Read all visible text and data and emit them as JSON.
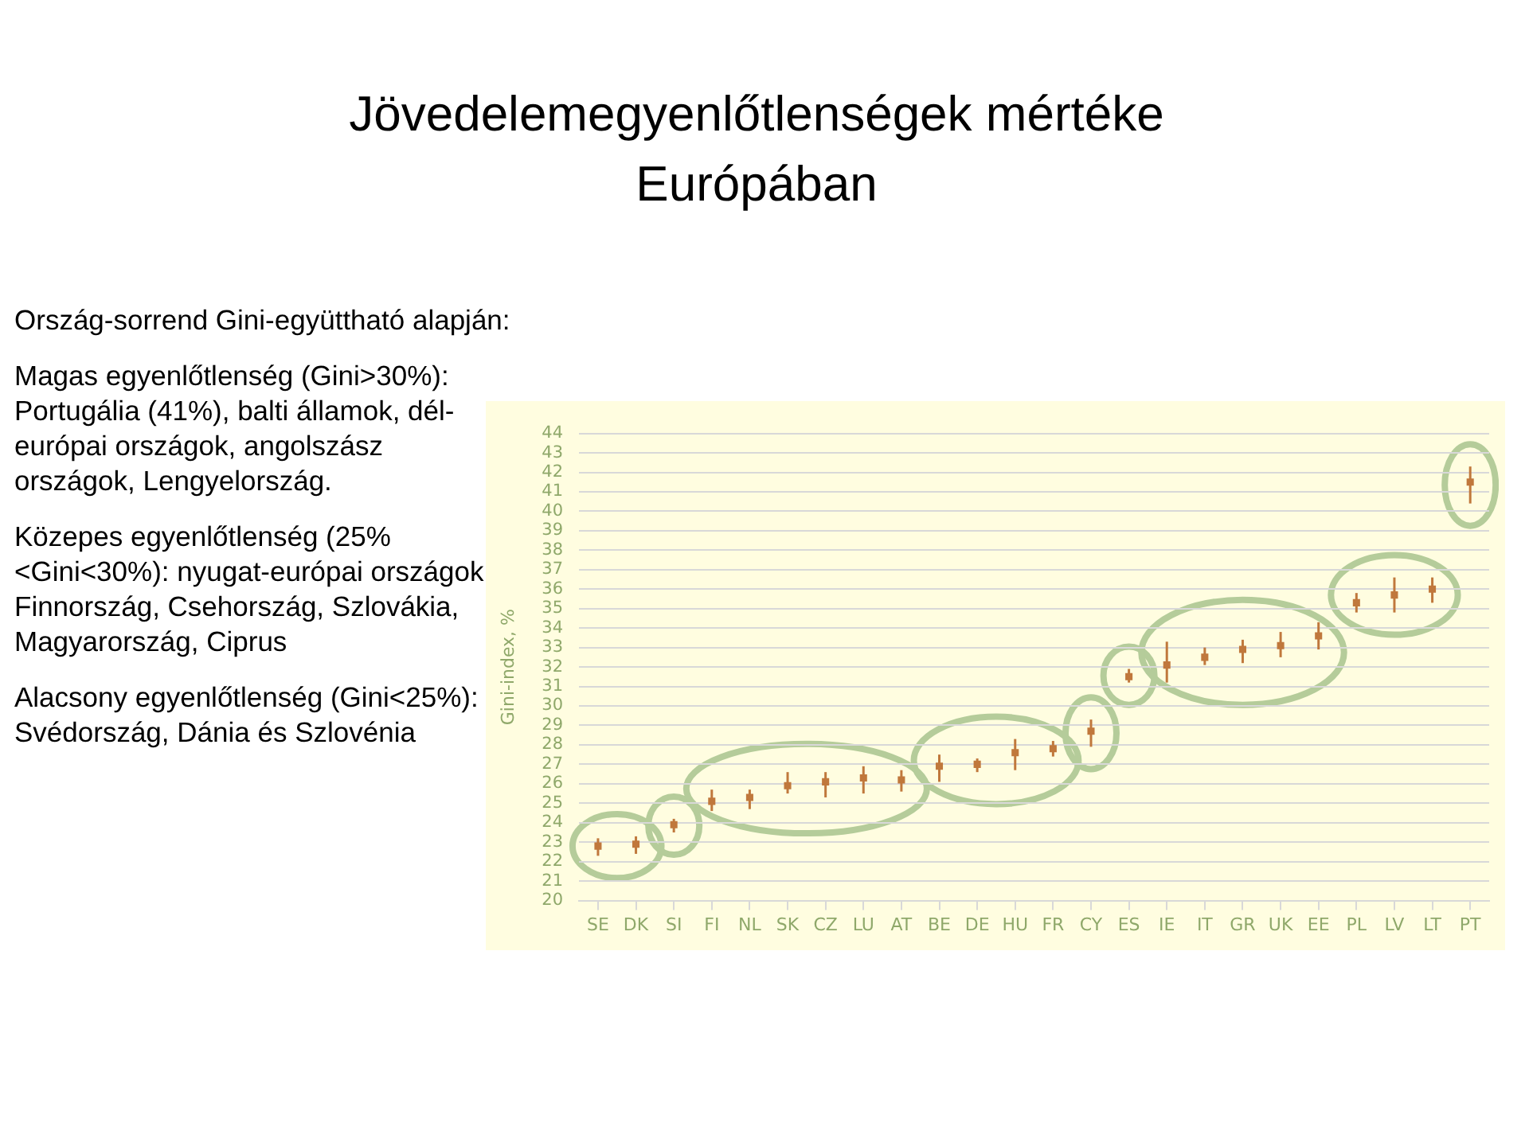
{
  "chart_data": {
    "type": "scatter",
    "title": "Jövedelemegyenlőtlenségek mértéke Európában",
    "ylabel": "Gini-index, %",
    "annotations": [
      "Ország-sorrend Gini-együttható alapján:",
      "Magas egyenlőtlenség (Gini>30%): Portugália (41%), balti államok, dél-európai országok, angolszász országok, Lengyelország.",
      "Közepes egyenlőtlenség (25%<Gini<30%): nyugat-európai országok, Finnország, Csehország, Szlovákia, Magyarország, Ciprus",
      "Alacsony egyenlőtlenség (Gini<25%): Svédország, Dánia és Szlovénia"
    ],
    "categories": [
      "SE",
      "DK",
      "SI",
      "FI",
      "NL",
      "SK",
      "CZ",
      "LU",
      "AT",
      "BE",
      "DE",
      "HU",
      "FR",
      "CY",
      "ES",
      "IE",
      "IT",
      "GR",
      "UK",
      "EE",
      "PL",
      "LV",
      "LT",
      "PT"
    ],
    "series": [
      {
        "color": "#c0783c",
        "values": [
          22.8,
          22.9,
          23.9,
          25.1,
          25.3,
          25.9,
          26.1,
          26.3,
          26.2,
          26.9,
          27.0,
          27.6,
          27.8,
          28.7,
          31.5,
          32.1,
          32.5,
          32.9,
          33.1,
          33.6,
          35.3,
          35.7,
          36.0,
          41.5
        ],
        "errors": [
          [
            22.3,
            23.2
          ],
          [
            22.4,
            23.3
          ],
          [
            23.5,
            24.2
          ],
          [
            24.6,
            25.7
          ],
          [
            24.7,
            25.7
          ],
          [
            25.5,
            26.6
          ],
          [
            25.3,
            26.6
          ],
          [
            25.5,
            26.9
          ],
          [
            25.6,
            26.7
          ],
          [
            26.1,
            27.5
          ],
          [
            26.6,
            27.3
          ],
          [
            26.7,
            28.3
          ],
          [
            27.4,
            28.2
          ],
          [
            27.9,
            29.3
          ],
          [
            31.2,
            31.9
          ],
          [
            31.2,
            33.3
          ],
          [
            32.1,
            33.0
          ],
          [
            32.2,
            33.4
          ],
          [
            32.5,
            33.8
          ],
          [
            32.9,
            34.3
          ],
          [
            34.8,
            35.8
          ],
          [
            34.8,
            36.6
          ],
          [
            35.3,
            36.6
          ],
          [
            40.4,
            42.3
          ]
        ]
      }
    ],
    "ylim": [
      20,
      44
    ],
    "yticks": [
      20,
      21,
      22,
      23,
      24,
      25,
      26,
      27,
      28,
      29,
      30,
      31,
      32,
      33,
      34,
      35,
      36,
      37,
      38,
      39,
      40,
      41,
      42,
      43,
      44
    ],
    "grid": "y",
    "legend": false,
    "marker": "square"
  }
}
